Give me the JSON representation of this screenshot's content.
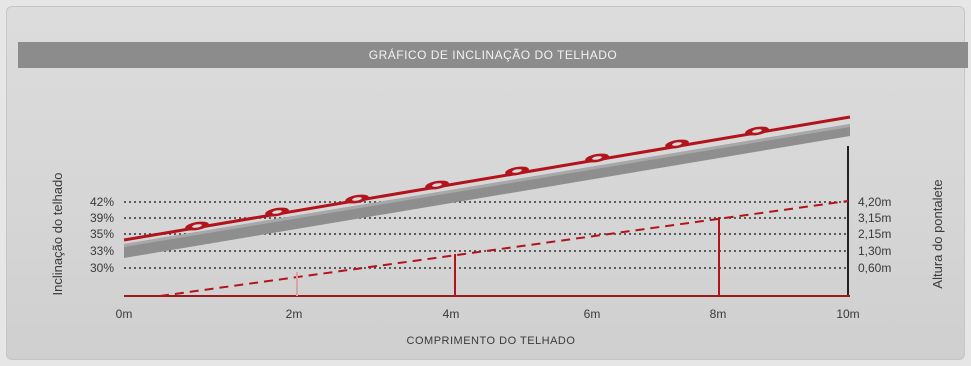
{
  "title": "GRÁFICO DE INCLINAÇÃO DO TELHADO",
  "y_axis_left_label": "Inclinação do telhado",
  "y_axis_right_label": "Altura do pontalete",
  "x_axis_label": "COMPRIMENTO DO TELHADO",
  "left_ticks": [
    "42%",
    "39%",
    "35%",
    "33%",
    "30%"
  ],
  "right_ticks": [
    "4,20m",
    "3,15m",
    "2,15m",
    "1,30m",
    "0,60m"
  ],
  "x_ticks": [
    "0m",
    "2m",
    "4m",
    "6m",
    "8m",
    "10m"
  ],
  "colors": {
    "roof_line": "#b3131b",
    "roof_body": "#8e8e8e",
    "dotted": "#333333",
    "title_bar": "#8c8c8c"
  },
  "chart_data": {
    "type": "line",
    "x": [
      0,
      2,
      4,
      6,
      8,
      10
    ],
    "xlabel": "COMPRIMENTO DO TELHADO",
    "ylabel_left": "Inclinação do telhado",
    "ylabel_right": "Altura do pontalete",
    "slope_levels": [
      "42%",
      "39%",
      "35%",
      "33%",
      "30%"
    ],
    "height_levels": [
      "4,20m",
      "3,15m",
      "2,15m",
      "1,30m",
      "0,60m"
    ],
    "pontalete_heights_m": [
      {
        "x": 2,
        "height": 0.6
      },
      {
        "x": 4,
        "height": 1.3
      },
      {
        "x": 8,
        "height": 3.15
      }
    ]
  }
}
